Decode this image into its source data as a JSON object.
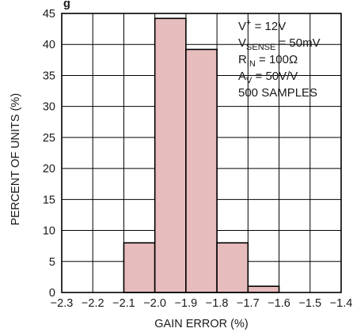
{
  "chart_data": {
    "type": "bar",
    "title_fragment": "g",
    "xlabel": "GAIN ERROR (%)",
    "ylabel": "PERCENT OF UNITS (%)",
    "xlim": [
      -2.3,
      -1.4
    ],
    "ylim": [
      0,
      45
    ],
    "x_ticks": [
      "−2.3",
      "−2.2",
      "−2.1",
      "−2.0",
      "−1.9",
      "−1.8",
      "−1.7",
      "−1.6",
      "−1.5",
      "−1.4"
    ],
    "y_ticks": [
      "0",
      "5",
      "10",
      "15",
      "20",
      "25",
      "30",
      "35",
      "40",
      "45"
    ],
    "grid": true,
    "bar_color": "#e6bcbc",
    "bars": [
      {
        "x_start": -2.1,
        "x_end": -2.0,
        "value": 8
      },
      {
        "x_start": -2.0,
        "x_end": -1.9,
        "value": 44.2
      },
      {
        "x_start": -1.9,
        "x_end": -1.8,
        "value": 39.2
      },
      {
        "x_start": -1.8,
        "x_end": -1.7,
        "value": 8
      },
      {
        "x_start": -1.7,
        "x_end": -1.6,
        "value": 1
      }
    ],
    "annotations": [
      {
        "main": "V",
        "sup": "+",
        "rest": " = 12V"
      },
      {
        "main": "V",
        "sub": "SENSE",
        "rest": " = 50mV"
      },
      {
        "main": "R",
        "sub": "IN",
        "rest": " = 100Ω"
      },
      {
        "main": "A",
        "sub": "V",
        "rest": " = 50V/V"
      },
      {
        "main": "500 SAMPLES"
      }
    ]
  }
}
